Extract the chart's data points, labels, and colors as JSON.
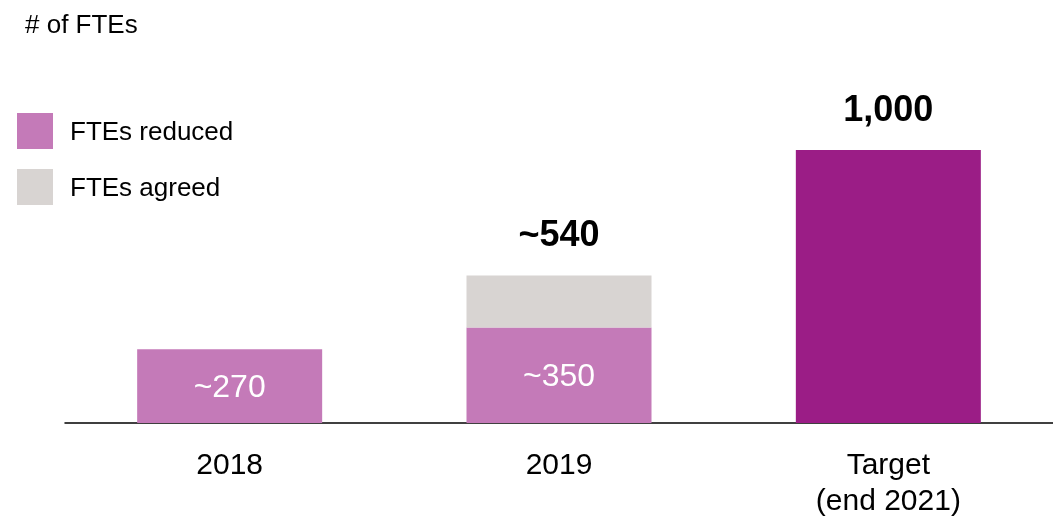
{
  "chart_data": {
    "type": "bar",
    "ylabel": "# of FTEs",
    "stacked": true,
    "legend": "top left",
    "categories": [
      "2018",
      "2019",
      "Target\n(end 2021)"
    ],
    "series": [
      {
        "name": "FTEs reduced",
        "color": "#c47ab8",
        "colors": [
          "#c47ab8",
          "#c47ab8",
          "#9b1d86"
        ],
        "values": [
          270,
          350,
          1000
        ],
        "value_labels": [
          "~270",
          "~350",
          null
        ]
      },
      {
        "name": "FTEs agreed",
        "color": "#d8d4d2",
        "values": [
          null,
          190,
          null
        ]
      }
    ],
    "totals": [
      null,
      "~540",
      "1,000"
    ]
  }
}
